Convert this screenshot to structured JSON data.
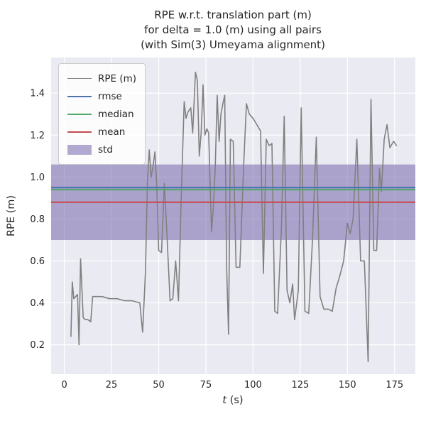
{
  "title": {
    "line1": "RPE w.r.t. translation part (m)",
    "line2": "for delta = 1.0 (m) using all pairs",
    "line3": "(with Sim(3) Umeyama alignment)"
  },
  "axes": {
    "xlabel_var": "t",
    "xlabel_rest": " (s)",
    "ylabel": "RPE (m)"
  },
  "legend": {
    "items": [
      {
        "label": "RPE (m)",
        "type": "line",
        "color": "#808080"
      },
      {
        "label": "rmse",
        "type": "line",
        "color": "#4c72b0"
      },
      {
        "label": "median",
        "type": "line",
        "color": "#55a868"
      },
      {
        "label": "mean",
        "type": "line",
        "color": "#c44e52"
      },
      {
        "label": "std",
        "type": "patch",
        "color": "rgba(129,114,178,0.6)"
      }
    ]
  },
  "chart_data": {
    "type": "line",
    "title": "RPE w.r.t. translation part (m) for delta = 1.0 (m) using all pairs (with Sim(3) Umeyama alignment)",
    "xlabel": "t (s)",
    "ylabel": "RPE (m)",
    "xlim": [
      -7,
      186
    ],
    "ylim": [
      0.06,
      1.57
    ],
    "xticks": [
      0,
      25,
      50,
      75,
      100,
      125,
      150,
      175
    ],
    "yticks": [
      0.2,
      0.4,
      0.6,
      0.8,
      1.0,
      1.2,
      1.4
    ],
    "grid": true,
    "legend_position": "upper left",
    "background": "#eaeaf2",
    "grid_color": "#ffffff",
    "hlines": [
      {
        "name": "rmse",
        "value": 0.95,
        "color": "#4c72b0"
      },
      {
        "name": "median",
        "value": 0.94,
        "color": "#55a868"
      },
      {
        "name": "mean",
        "value": 0.88,
        "color": "#c44e52"
      }
    ],
    "band": {
      "name": "std",
      "low": 0.7,
      "high": 1.06,
      "color": "rgba(129,114,178,0.6)"
    },
    "series": [
      {
        "name": "RPE (m)",
        "color": "#808080",
        "points": [
          [
            3.5,
            0.24
          ],
          [
            4.2,
            0.5
          ],
          [
            5,
            0.42
          ],
          [
            6,
            0.43
          ],
          [
            7,
            0.44
          ],
          [
            7.8,
            0.2
          ],
          [
            8.6,
            0.61
          ],
          [
            9.4,
            0.45
          ],
          [
            10,
            0.33
          ],
          [
            11,
            0.32
          ],
          [
            12.5,
            0.32
          ],
          [
            14,
            0.31
          ],
          [
            15,
            0.43
          ],
          [
            17,
            0.43
          ],
          [
            20,
            0.43
          ],
          [
            24,
            0.42
          ],
          [
            28,
            0.42
          ],
          [
            32,
            0.41
          ],
          [
            36,
            0.41
          ],
          [
            40,
            0.4
          ],
          [
            41.5,
            0.26
          ],
          [
            43,
            0.55
          ],
          [
            44,
            0.97
          ],
          [
            45,
            1.13
          ],
          [
            46,
            1.0
          ],
          [
            47,
            1.05
          ],
          [
            48,
            1.12
          ],
          [
            49,
            0.96
          ],
          [
            50,
            0.65
          ],
          [
            51.5,
            0.64
          ],
          [
            53,
            0.97
          ],
          [
            54.5,
            0.7
          ],
          [
            56,
            0.41
          ],
          [
            57.5,
            0.42
          ],
          [
            59,
            0.6
          ],
          [
            60.5,
            0.41
          ],
          [
            62,
            0.92
          ],
          [
            63.5,
            1.36
          ],
          [
            64.5,
            1.28
          ],
          [
            65.5,
            1.31
          ],
          [
            67,
            1.33
          ],
          [
            68,
            1.21
          ],
          [
            69.5,
            1.5
          ],
          [
            70.5,
            1.46
          ],
          [
            71.5,
            1.1
          ],
          [
            72.5,
            1.21
          ],
          [
            73.5,
            1.44
          ],
          [
            74.5,
            1.2
          ],
          [
            75.5,
            1.23
          ],
          [
            76.5,
            1.21
          ],
          [
            78,
            0.74
          ],
          [
            79,
            0.86
          ],
          [
            80,
            1.05
          ],
          [
            81,
            1.39
          ],
          [
            82,
            1.17
          ],
          [
            83,
            1.3
          ],
          [
            84,
            1.35
          ],
          [
            85,
            1.39
          ],
          [
            86,
            0.57
          ],
          [
            87,
            0.25
          ],
          [
            88,
            1.18
          ],
          [
            89.5,
            1.17
          ],
          [
            91,
            0.57
          ],
          [
            93,
            0.57
          ],
          [
            95,
            1.05
          ],
          [
            96.5,
            1.35
          ],
          [
            98,
            1.3
          ],
          [
            100,
            1.28
          ],
          [
            102,
            1.25
          ],
          [
            104,
            1.22
          ],
          [
            105.5,
            0.54
          ],
          [
            107,
            1.18
          ],
          [
            108.5,
            1.15
          ],
          [
            110,
            1.16
          ],
          [
            111.5,
            0.36
          ],
          [
            113,
            0.35
          ],
          [
            115,
            0.75
          ],
          [
            116.5,
            1.29
          ],
          [
            118,
            0.46
          ],
          [
            119.5,
            0.4
          ],
          [
            121,
            0.49
          ],
          [
            122,
            0.32
          ],
          [
            124,
            0.46
          ],
          [
            125.5,
            1.33
          ],
          [
            127.5,
            0.36
          ],
          [
            129.5,
            0.35
          ],
          [
            131.5,
            0.7
          ],
          [
            133.5,
            1.19
          ],
          [
            135.5,
            0.43
          ],
          [
            137.5,
            0.37
          ],
          [
            140,
            0.37
          ],
          [
            142,
            0.36
          ],
          [
            144,
            0.47
          ],
          [
            146,
            0.53
          ],
          [
            148,
            0.6
          ],
          [
            150,
            0.78
          ],
          [
            151.5,
            0.73
          ],
          [
            153,
            0.8
          ],
          [
            155,
            1.18
          ],
          [
            157,
            0.6
          ],
          [
            159,
            0.6
          ],
          [
            161,
            0.12
          ],
          [
            162.5,
            1.37
          ],
          [
            164,
            0.65
          ],
          [
            165.5,
            0.65
          ],
          [
            167,
            1.04
          ],
          [
            168,
            0.93
          ],
          [
            169.5,
            1.18
          ],
          [
            171,
            1.25
          ],
          [
            172.5,
            1.14
          ],
          [
            174.5,
            1.17
          ],
          [
            176,
            1.15
          ]
        ]
      }
    ]
  }
}
